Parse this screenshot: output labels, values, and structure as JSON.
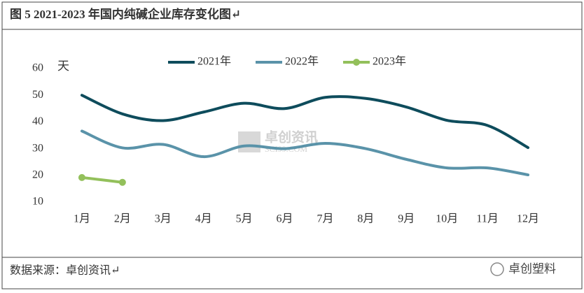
{
  "chart_data": {
    "type": "line",
    "title": "图 5 2021-2023 年国内纯碱企业库存变化图↵",
    "y_unit": "天",
    "source": "数据来源：卓创资讯↵",
    "watermark": "卓创资讯",
    "watermark_sub": "SCI99.COM",
    "brand": "卓创塑料",
    "categories": [
      "1月",
      "2月",
      "3月",
      "4月",
      "5月",
      "6月",
      "7月",
      "8月",
      "9月",
      "10月",
      "11月",
      "12月"
    ],
    "series": [
      {
        "name": "2021年",
        "color": "#0e4c5c",
        "values": [
          50,
          43,
          40.5,
          43.7,
          47,
          45,
          49.2,
          48.8,
          45.6,
          40.6,
          38.7,
          30.4
        ]
      },
      {
        "name": "2022年",
        "color": "#5a93a9",
        "values": [
          36.6,
          30.3,
          31.6,
          27,
          31,
          30,
          32,
          30,
          26,
          22.8,
          22.8,
          20.2
        ]
      },
      {
        "name": "2023年",
        "color": "#93c05b",
        "values": [
          19.2,
          17.4,
          null,
          null,
          null,
          null,
          null,
          null,
          null,
          null,
          null,
          null
        ],
        "markers": true
      }
    ],
    "ylim": [
      10,
      60
    ],
    "yticks": [
      10,
      20,
      30,
      40,
      50,
      60
    ],
    "grid": false,
    "legend": "top"
  }
}
